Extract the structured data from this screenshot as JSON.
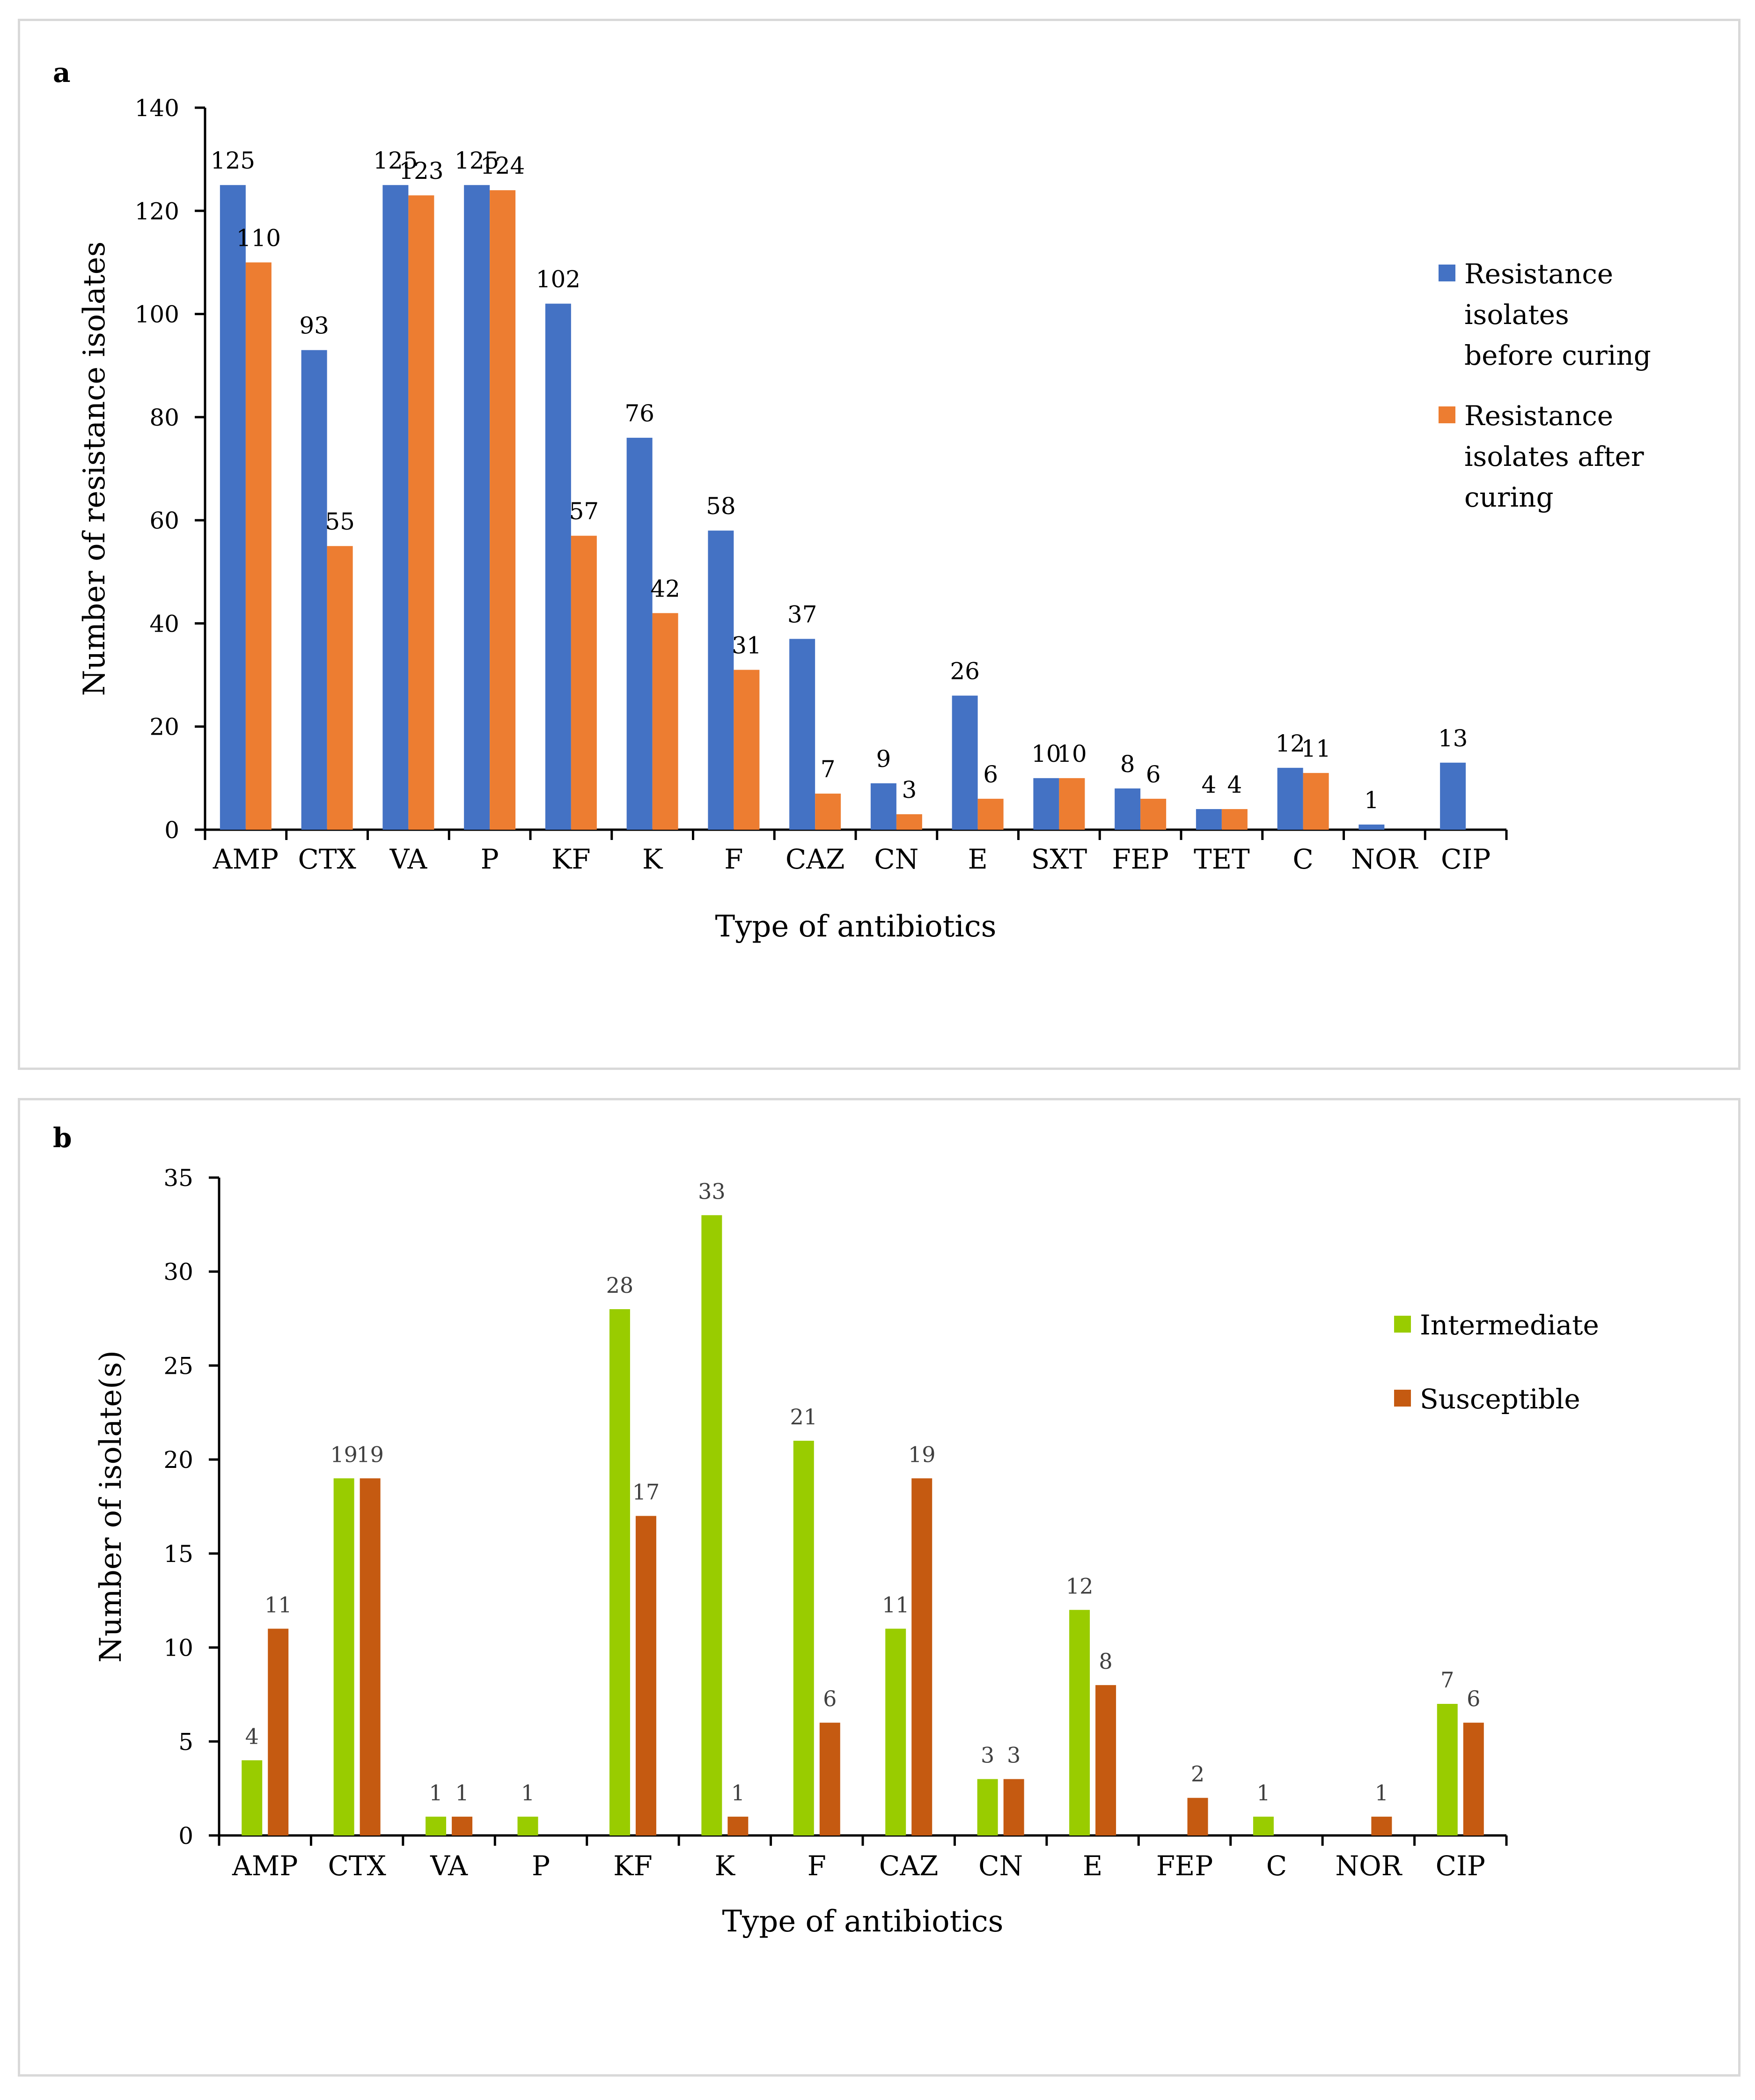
{
  "chart_data": [
    {
      "type": "bar",
      "panel_label": "a",
      "title": "",
      "xlabel": "Type of antibiotics",
      "ylabel": "Number of resistance isolates",
      "ylim": [
        0,
        140
      ],
      "yticks": [
        0,
        20,
        40,
        60,
        80,
        100,
        120,
        140
      ],
      "categories": [
        "AMP",
        "CTX",
        "VA",
        "P",
        "KF",
        "K",
        "F",
        "CAZ",
        "CN",
        "E",
        "SXT",
        "FEP",
        "TET",
        "C",
        "NOR",
        "CIP"
      ],
      "series": [
        {
          "name": "Resistance isolates before curing",
          "legend_lines": [
            "Resistance",
            "isolates",
            "before curing"
          ],
          "color": "#4472c4",
          "values": [
            125,
            93,
            125,
            125,
            102,
            76,
            58,
            37,
            9,
            26,
            10,
            8,
            4,
            12,
            1,
            13
          ],
          "labels": [
            "125",
            "93",
            "125",
            "125",
            "102",
            "76",
            "58",
            "37",
            "9",
            "26",
            "10",
            "8",
            "4",
            "12",
            "1",
            "13"
          ]
        },
        {
          "name": "Resistance isolates after curing",
          "legend_lines": [
            "Resistance",
            "isolates after",
            "curing"
          ],
          "color": "#ed7d31",
          "values": [
            110,
            55,
            123,
            124,
            57,
            42,
            31,
            7,
            3,
            6,
            10,
            6,
            4,
            11,
            0,
            0
          ],
          "labels": [
            "110",
            "55",
            "123",
            "124",
            "57",
            "42",
            "31",
            "7",
            "3",
            "6",
            "10",
            "6",
            "4",
            "11",
            "",
            ""
          ]
        }
      ],
      "legend_position": "right"
    },
    {
      "type": "bar",
      "panel_label": "b",
      "title": "",
      "xlabel": "Type of antibiotics",
      "ylabel": "Number of isolate(s)",
      "ylim": [
        0,
        35
      ],
      "yticks": [
        0,
        5,
        10,
        15,
        20,
        25,
        30,
        35
      ],
      "categories": [
        "AMP",
        "CTX",
        "VA",
        "P",
        "KF",
        "K",
        "F",
        "CAZ",
        "CN",
        "E",
        "FEP",
        "C",
        "NOR",
        "CIP"
      ],
      "series": [
        {
          "name": "Intermediate",
          "legend_lines": [
            "Intermediate"
          ],
          "color": "#99cc00",
          "values": [
            4,
            19,
            1,
            1,
            28,
            33,
            21,
            11,
            3,
            12,
            0,
            1,
            0,
            7
          ],
          "labels": [
            "4",
            "19",
            "1",
            "1",
            "28",
            "33",
            "21",
            "11",
            "3",
            "12",
            "",
            "1",
            "",
            "7"
          ]
        },
        {
          "name": "Susceptible",
          "legend_lines": [
            "Susceptible"
          ],
          "color": "#c55a11",
          "values": [
            11,
            19,
            1,
            0,
            17,
            1,
            6,
            19,
            3,
            8,
            2,
            0,
            1,
            6
          ],
          "labels": [
            "11",
            "19",
            "1",
            "",
            "17",
            "1",
            "6",
            "19",
            "3",
            "8",
            "2",
            "",
            "1",
            "6"
          ]
        }
      ],
      "legend_position": "right"
    }
  ]
}
